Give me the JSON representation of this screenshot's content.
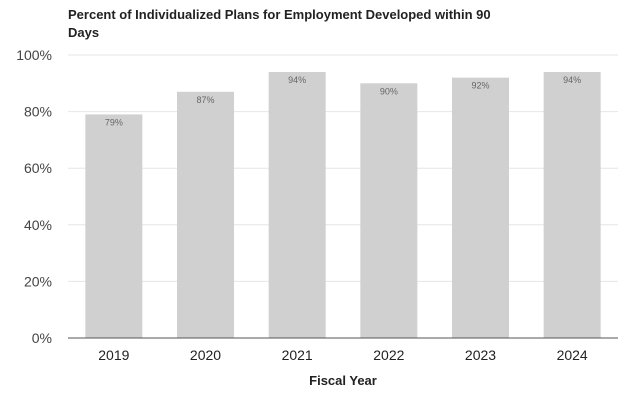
{
  "chart_data": {
    "type": "bar",
    "title_lines": [
      "Percent of Individualized Plans for Employment Developed within 90",
      "Days"
    ],
    "xlabel": "Fiscal Year",
    "ylabel": "",
    "categories": [
      "2019",
      "2020",
      "2021",
      "2022",
      "2023",
      "2024"
    ],
    "values": [
      79,
      87,
      94,
      90,
      92,
      94
    ],
    "data_labels": [
      "79%",
      "87%",
      "94%",
      "90%",
      "92%",
      "94%"
    ],
    "ylim": [
      0,
      100
    ],
    "yticks": [
      0,
      20,
      40,
      60,
      80,
      100
    ],
    "ytick_labels": [
      "0%",
      "20%",
      "40%",
      "60%",
      "80%",
      "100%"
    ],
    "grid": true,
    "legend": "none",
    "colors": {
      "bar": "#d0d0d0",
      "grid": "#e6e6e6",
      "baseline": "#555555",
      "text": "#222222",
      "tick_text": "#444444",
      "data_label": "#666666"
    }
  }
}
